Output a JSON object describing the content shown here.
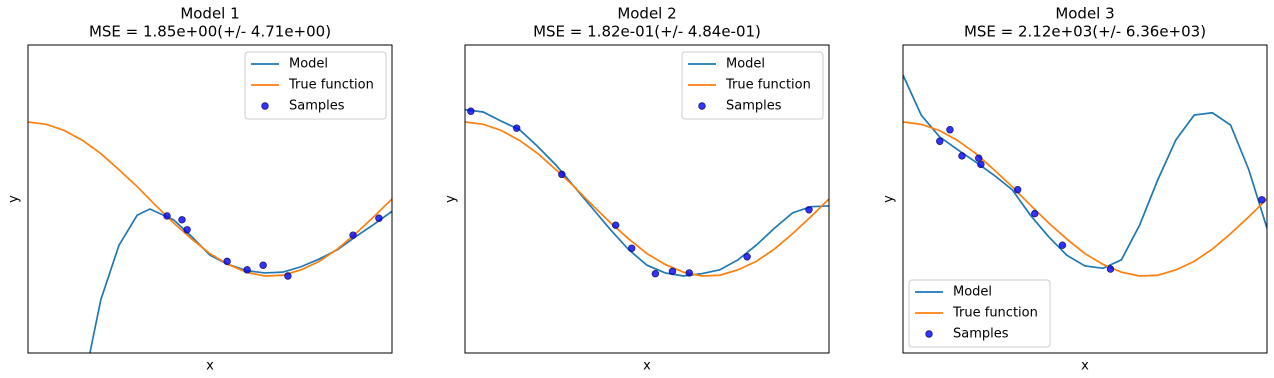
{
  "chart_data": [
    {
      "type": "line",
      "title": "Model 1",
      "subtitle": "MSE = 1.85e+00(+/- 4.71e+00)",
      "xlabel": "x",
      "ylabel": "y",
      "xlim": [
        0,
        1
      ],
      "ylim": [
        -2,
        2
      ],
      "legend": "upper right",
      "series": [
        {
          "name": "Model",
          "color": "#1f77b4",
          "x": [
            0.17,
            0.2,
            0.25,
            0.3,
            0.335,
            0.4,
            0.45,
            0.5,
            0.55,
            0.6,
            0.65,
            0.7,
            0.75,
            0.8,
            0.85,
            0.9,
            0.95,
            1.0
          ],
          "values": [
            -2,
            -1.31,
            -0.6,
            -0.21,
            -0.13,
            -0.27,
            -0.49,
            -0.73,
            -0.85,
            -0.93,
            -0.96,
            -0.95,
            -0.88,
            -0.78,
            -0.66,
            -0.49,
            -0.33,
            -0.16
          ]
        },
        {
          "name": "True function",
          "color": "#ff7f0e",
          "x": [
            0,
            0.05,
            0.1,
            0.15,
            0.2,
            0.25,
            0.3,
            0.35,
            0.4,
            0.45,
            0.5,
            0.55,
            0.6,
            0.65,
            0.7,
            0.75,
            0.8,
            0.85,
            0.9,
            0.95,
            1.0
          ],
          "values": [
            1,
            0.97,
            0.89,
            0.76,
            0.59,
            0.38,
            0.16,
            -0.08,
            -0.31,
            -0.52,
            -0.71,
            -0.85,
            -0.95,
            -1,
            -0.99,
            -0.92,
            -0.81,
            -0.65,
            -0.45,
            -0.23,
            0
          ]
        },
        {
          "name": "Samples",
          "type": "scatter",
          "color": "#0000ff",
          "x": [
            0.382,
            0.423,
            0.437,
            0.547,
            0.602,
            0.646,
            0.714,
            0.893,
            0.964
          ],
          "values": [
            -0.22,
            -0.27,
            -0.4,
            -0.81,
            -0.92,
            -0.86,
            -1.0,
            -0.47,
            -0.25
          ]
        }
      ]
    },
    {
      "type": "line",
      "title": "Model 2",
      "subtitle": "MSE = 1.82e-01(+/- 4.84e-01)",
      "xlabel": "x",
      "ylabel": "y",
      "xlim": [
        0,
        1
      ],
      "ylim": [
        -2,
        2
      ],
      "legend": "upper right",
      "series": [
        {
          "name": "Model",
          "color": "#1f77b4",
          "x": [
            0,
            0.05,
            0.1,
            0.15,
            0.2,
            0.25,
            0.3,
            0.35,
            0.4,
            0.45,
            0.5,
            0.55,
            0.6,
            0.65,
            0.7,
            0.75,
            0.8,
            0.85,
            0.9,
            0.95,
            1.0
          ],
          "values": [
            1.16,
            1.13,
            1.01,
            0.9,
            0.68,
            0.44,
            0.16,
            -0.12,
            -0.4,
            -0.66,
            -0.86,
            -0.96,
            -1.0,
            -0.97,
            -0.92,
            -0.79,
            -0.6,
            -0.38,
            -0.18,
            -0.1,
            -0.09
          ]
        },
        {
          "name": "True function",
          "color": "#ff7f0e",
          "x": [
            0,
            0.05,
            0.1,
            0.15,
            0.2,
            0.25,
            0.3,
            0.35,
            0.4,
            0.45,
            0.5,
            0.55,
            0.6,
            0.65,
            0.7,
            0.75,
            0.8,
            0.85,
            0.9,
            0.95,
            1.0
          ],
          "values": [
            1,
            0.97,
            0.89,
            0.76,
            0.59,
            0.38,
            0.16,
            -0.08,
            -0.31,
            -0.52,
            -0.71,
            -0.85,
            -0.95,
            -1,
            -0.99,
            -0.92,
            -0.81,
            -0.65,
            -0.45,
            -0.23,
            0
          ]
        },
        {
          "name": "Samples",
          "type": "scatter",
          "color": "#0000ff",
          "x": [
            0.016,
            0.142,
            0.266,
            0.414,
            0.458,
            0.523,
            0.57,
            0.616,
            0.775,
            0.945
          ],
          "values": [
            1.14,
            0.92,
            0.32,
            -0.34,
            -0.64,
            -0.97,
            -0.94,
            -0.96,
            -0.75,
            -0.14
          ]
        }
      ]
    },
    {
      "type": "line",
      "title": "Model 3",
      "subtitle": "MSE = 2.12e+03(+/- 6.36e+03)",
      "xlabel": "x",
      "ylabel": "y",
      "xlim": [
        0,
        1
      ],
      "ylim": [
        -2,
        2
      ],
      "legend": "lower left",
      "series": [
        {
          "name": "Model",
          "color": "#1f77b4",
          "x": [
            0,
            0.05,
            0.1,
            0.15,
            0.2,
            0.25,
            0.3,
            0.35,
            0.4,
            0.45,
            0.5,
            0.55,
            0.6,
            0.65,
            0.7,
            0.75,
            0.8,
            0.85,
            0.9,
            0.95,
            1.0
          ],
          "values": [
            1.61,
            1.09,
            0.81,
            0.64,
            0.48,
            0.31,
            0.12,
            -0.21,
            -0.49,
            -0.73,
            -0.87,
            -0.9,
            -0.79,
            -0.34,
            0.25,
            0.77,
            1.09,
            1.12,
            0.96,
            0.38,
            -0.38
          ]
        },
        {
          "name": "True function",
          "color": "#ff7f0e",
          "x": [
            0,
            0.05,
            0.1,
            0.15,
            0.2,
            0.25,
            0.3,
            0.35,
            0.4,
            0.45,
            0.5,
            0.55,
            0.6,
            0.65,
            0.7,
            0.75,
            0.8,
            0.85,
            0.9,
            0.95,
            1.0
          ],
          "values": [
            1,
            0.97,
            0.89,
            0.76,
            0.59,
            0.38,
            0.16,
            -0.08,
            -0.31,
            -0.52,
            -0.71,
            -0.85,
            -0.95,
            -1,
            -0.99,
            -0.92,
            -0.81,
            -0.65,
            -0.45,
            -0.23,
            0
          ]
        },
        {
          "name": "Samples",
          "type": "scatter",
          "color": "#0000ff",
          "x": [
            0.101,
            0.129,
            0.162,
            0.208,
            0.214,
            0.315,
            0.362,
            0.438,
            0.57,
            0.986
          ],
          "values": [
            0.75,
            0.9,
            0.56,
            0.53,
            0.45,
            0.12,
            -0.19,
            -0.6,
            -0.91,
            -0.01
          ]
        }
      ]
    }
  ]
}
